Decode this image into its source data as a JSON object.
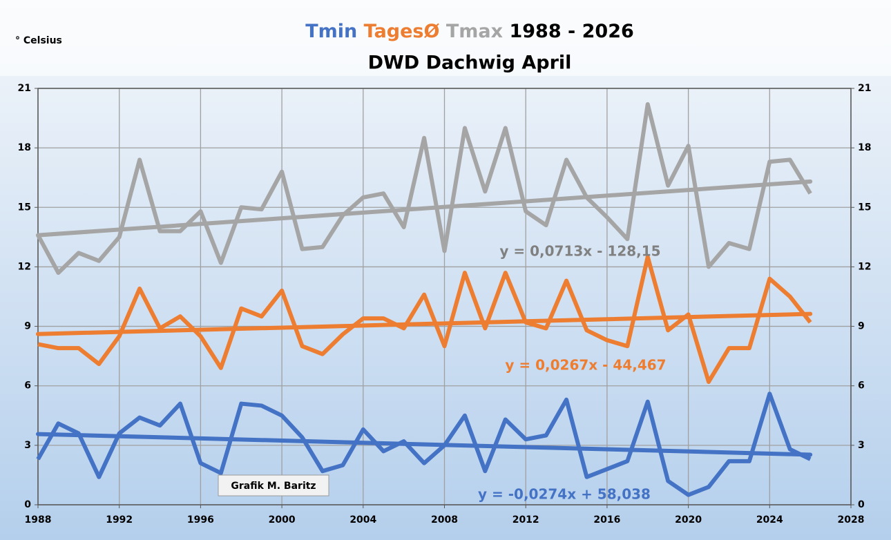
{
  "chart_data": {
    "type": "line",
    "title": "1988 - 2026",
    "subtitle": "DWD Dachwig April",
    "ylabel": "° Celsius",
    "annotation": "Grafik M. Baritz",
    "x": [
      1988,
      1989,
      1990,
      1991,
      1992,
      1993,
      1994,
      1995,
      1996,
      1997,
      1998,
      1999,
      2000,
      2001,
      2002,
      2003,
      2004,
      2005,
      2006,
      2007,
      2008,
      2009,
      2010,
      2011,
      2012,
      2013,
      2014,
      2015,
      2016,
      2017,
      2018,
      2019,
      2020,
      2021,
      2022,
      2023,
      2024,
      2025,
      2026
    ],
    "series": [
      {
        "name": "Tmin",
        "color": "#4472c4",
        "values": [
          2.3,
          4.1,
          3.6,
          1.4,
          3.6,
          4.4,
          4.0,
          5.1,
          2.1,
          1.6,
          5.1,
          5.0,
          4.5,
          3.4,
          1.7,
          2.0,
          3.8,
          2.7,
          3.2,
          2.1,
          3.0,
          4.5,
          1.7,
          4.3,
          3.3,
          3.5,
          5.3,
          1.4,
          1.8,
          2.2,
          5.2,
          1.2,
          0.5,
          0.9,
          2.2,
          2.2,
          5.6,
          2.8,
          2.3
        ],
        "trend": {
          "slope": -0.0274,
          "intercept": 58.038,
          "label": "y = -0,0274x + 58,038"
        }
      },
      {
        "name": "TagesØ",
        "color": "#ed7d31",
        "values": [
          8.1,
          7.9,
          7.9,
          7.1,
          8.5,
          10.9,
          8.9,
          9.5,
          8.5,
          6.9,
          9.9,
          9.5,
          10.8,
          8.0,
          7.6,
          8.6,
          9.4,
          9.4,
          8.9,
          10.6,
          8.0,
          11.7,
          8.9,
          11.7,
          9.2,
          8.9,
          11.3,
          8.8,
          8.3,
          8.0,
          12.5,
          8.8,
          9.6,
          6.2,
          7.9,
          7.9,
          11.4,
          10.5,
          9.2
        ],
        "trend": {
          "slope": 0.0267,
          "intercept": -44.467,
          "label": "y = 0,0267x - 44,467"
        }
      },
      {
        "name": "Tmax",
        "color": "#a5a5a5",
        "values": [
          13.6,
          11.7,
          12.7,
          12.3,
          13.5,
          17.4,
          13.8,
          13.8,
          14.8,
          12.2,
          15.0,
          14.9,
          16.8,
          12.9,
          13.0,
          14.6,
          15.5,
          15.7,
          14.0,
          18.5,
          12.8,
          19.0,
          15.8,
          19.0,
          14.8,
          14.1,
          17.4,
          15.5,
          14.5,
          13.4,
          20.2,
          16.1,
          18.1,
          12.0,
          13.2,
          12.9,
          17.3,
          17.4,
          15.7
        ],
        "trend": {
          "slope": 0.0713,
          "intercept": -128.15,
          "label": "y = 0,0713x - 128,15"
        }
      }
    ],
    "xlim": [
      1988,
      2028
    ],
    "xticks": [
      1988,
      1992,
      1996,
      2000,
      2004,
      2008,
      2012,
      2016,
      2020,
      2024,
      2028
    ],
    "ylim": [
      0,
      21
    ],
    "yticks": [
      0,
      3,
      6,
      9,
      12,
      15,
      18,
      21
    ],
    "grid": true
  }
}
